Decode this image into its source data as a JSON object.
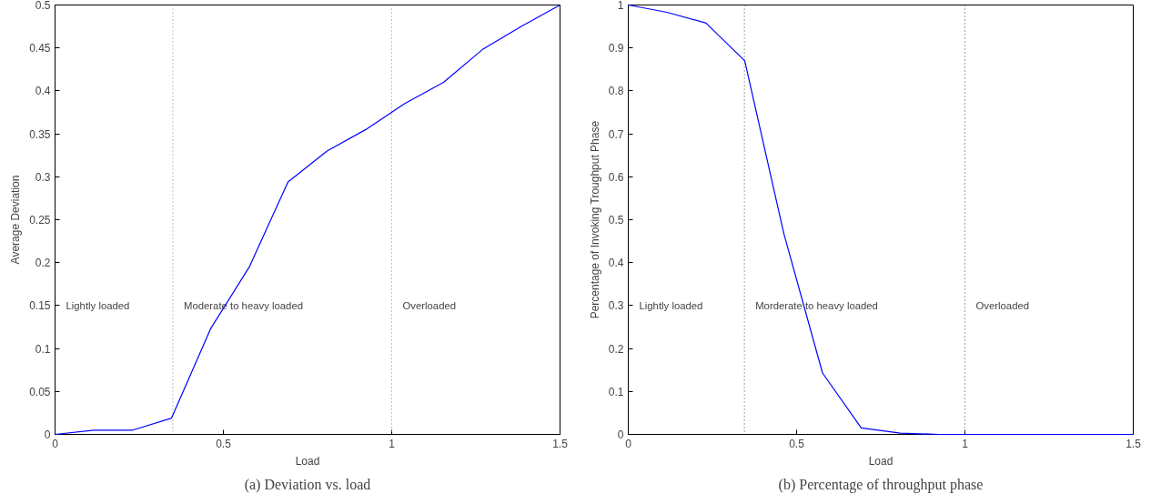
{
  "chart_data": [
    {
      "type": "line",
      "title": "(a) Deviation vs. load",
      "xlabel": "Load",
      "ylabel": "Average Deviation",
      "x": [
        0,
        0.115,
        0.231,
        0.346,
        0.462,
        0.577,
        0.692,
        0.808,
        0.923,
        1.038,
        1.154,
        1.269,
        1.385,
        1.5
      ],
      "series": [
        {
          "color": "#0000ff",
          "values": [
            0,
            0.005,
            0.005,
            0.019,
            0.123,
            0.195,
            0.294,
            0.33,
            0.355,
            0.385,
            0.41,
            0.448,
            0.475,
            0.5
          ]
        }
      ],
      "xlim": [
        0,
        1.5
      ],
      "ylim": [
        0,
        0.5
      ],
      "xticks": [
        0,
        0.5,
        1,
        1.5
      ],
      "yticks": [
        0,
        0.05,
        0.1,
        0.15,
        0.2,
        0.25,
        0.3,
        0.35,
        0.4,
        0.45,
        0.5
      ],
      "grid": false,
      "line_style": "solid",
      "ref_lines": [
        {
          "axis": "x",
          "value": 0.35,
          "color": "#808080",
          "line_style": "dotted"
        },
        {
          "axis": "x",
          "value": 1,
          "color": "#808080",
          "line_style": "dotted"
        }
      ],
      "annotations": [
        "Lightly loaded",
        "Moderate to heavy loaded",
        "Overloaded"
      ]
    },
    {
      "type": "line",
      "title": "(b) Percentage of throughput phase",
      "xlabel": "Load",
      "ylabel": "Percentage of Invoking Troughput Phase",
      "x": [
        0,
        0.115,
        0.231,
        0.346,
        0.462,
        0.577,
        0.692,
        0.808,
        0.923,
        1.038,
        1.154,
        1.269,
        1.385,
        1.5
      ],
      "series": [
        {
          "color": "#0000ff",
          "values": [
            1,
            0.983,
            0.958,
            0.87,
            0.468,
            0.143,
            0.015,
            0.003,
            0,
            0,
            0,
            0,
            0,
            0
          ]
        }
      ],
      "xlim": [
        0,
        1.5
      ],
      "ylim": [
        0,
        1
      ],
      "xticks": [
        0,
        0.5,
        1,
        1.5
      ],
      "yticks": [
        0,
        0.1,
        0.2,
        0.3,
        0.4,
        0.5,
        0.6,
        0.7,
        0.8,
        0.9,
        1
      ],
      "grid": false,
      "line_style": "solid",
      "ref_lines": [
        {
          "axis": "x",
          "value": 0.345,
          "color": "#404040",
          "line_style": "dotted"
        },
        {
          "axis": "x",
          "value": 1,
          "color": "#404040",
          "line_style": "dotted"
        }
      ],
      "annotations": [
        "Lightly loaded",
        "Morderate to heavy loaded",
        "Overloaded"
      ]
    }
  ]
}
